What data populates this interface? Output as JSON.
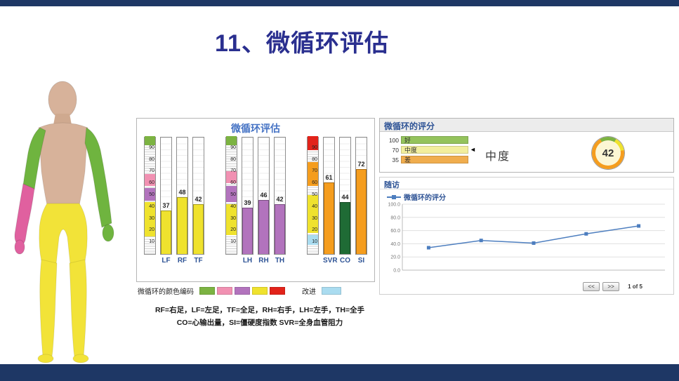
{
  "page": {
    "title": "11、微循环评估"
  },
  "colors": {
    "navy": "#1e3765",
    "title_blue": "#2a2f8f",
    "panel_title_blue": "#4472c4",
    "label_blue": "#2f5496",
    "green": "#7cb342",
    "pink": "#f191b2",
    "magenta": "#e0609f",
    "purple": "#b273bd",
    "yellow": "#efe22e",
    "red": "#e2231a",
    "orange": "#f59d1e",
    "dark_green": "#1f6b35",
    "light_blue": "#aadcf0",
    "line": "#4d7ebf",
    "band_good": "#94c35c",
    "band_mid": "#f2ee9d",
    "band_bad": "#f0ad4e",
    "skin": "#d7b29a",
    "body_yellow": "#f2e338"
  },
  "chart_data": [
    {
      "type": "bar",
      "title": "微循环评估",
      "ylim": [
        0,
        100
      ],
      "axis_ticks": [
        10,
        20,
        30,
        40,
        50,
        60,
        70,
        80,
        90
      ],
      "categories": [
        "LF",
        "RF",
        "TF",
        "LH",
        "RH",
        "TH",
        "SVR",
        "CO",
        "SI"
      ],
      "values": [
        37,
        48,
        42,
        39,
        46,
        42,
        61,
        44,
        72
      ],
      "groups": [
        {
          "axis_segments": [
            {
              "color": "green",
              "from": 92,
              "to": 100
            },
            {
              "color": "pink",
              "from": 58,
              "to": 68
            },
            {
              "color": "purple",
              "from": 45,
              "to": 56
            },
            {
              "color": "yellow",
              "from": 15,
              "to": 44
            }
          ],
          "bars": [
            {
              "label": "LF",
              "value": 37,
              "color": "yellow"
            },
            {
              "label": "RF",
              "value": 48,
              "color": "yellow"
            },
            {
              "label": "TF",
              "value": 42,
              "color": "yellow"
            }
          ]
        },
        {
          "axis_segments": [
            {
              "color": "green",
              "from": 92,
              "to": 100
            },
            {
              "color": "pink",
              "from": 60,
              "to": 70
            },
            {
              "color": "purple",
              "from": 44,
              "to": 58
            },
            {
              "color": "yellow",
              "from": 16,
              "to": 42
            }
          ],
          "bars": [
            {
              "label": "LH",
              "value": 39,
              "color": "purple"
            },
            {
              "label": "RH",
              "value": 46,
              "color": "purple"
            },
            {
              "label": "TH",
              "value": 42,
              "color": "purple"
            }
          ]
        },
        {
          "axis_segments": [
            {
              "color": "red",
              "from": 88,
              "to": 100
            },
            {
              "color": "orange",
              "from": 58,
              "to": 78
            },
            {
              "color": "yellow",
              "from": 18,
              "to": 50
            },
            {
              "color": "light_blue",
              "from": 8,
              "to": 16
            }
          ],
          "bars": [
            {
              "label": "SVR",
              "value": 61,
              "color": "orange"
            },
            {
              "label": "CO",
              "value": 44,
              "color": "dark_green"
            },
            {
              "label": "SI",
              "value": 72,
              "color": "orange"
            }
          ]
        }
      ]
    },
    {
      "type": "line",
      "title": "随访",
      "legend": "微循环的评分",
      "x": [
        1,
        2,
        3,
        4,
        5
      ],
      "values": [
        34,
        45,
        41,
        55,
        67
      ],
      "ylim": [
        0,
        100
      ],
      "yticks": [
        "0.0",
        "20.0",
        "40.0",
        "60.0",
        "80.0",
        "100.0"
      ],
      "marker": "square",
      "line_color": "#4d7ebf"
    }
  ],
  "score_panel": {
    "title": "微循环的评分",
    "bands": [
      {
        "value": "100",
        "label": "好",
        "color": "band_good"
      },
      {
        "value": "70",
        "label": "中度",
        "color": "band_mid",
        "pointer": true
      },
      {
        "value": "35",
        "label": "差",
        "color": "band_bad"
      }
    ],
    "rating": "中度",
    "score": "42"
  },
  "followup": {
    "title": "随访",
    "legend": "微循环的评分",
    "pager": {
      "prev": "<<",
      "next": ">>",
      "page": "1 of 5"
    }
  },
  "color_legend": {
    "label": "微循环的颜色编码",
    "swatches": [
      "green",
      "pink",
      "purple",
      "yellow",
      "red"
    ],
    "improve_label": "改进",
    "improve_color": "light_blue"
  },
  "footnotes": [
    "RF=右足，LF=左足，TF=全足，RH=右手，LH=左手，TH=全手",
    "CO=心输出量，SI=僵硬度指数  SVR=全身血管阻力"
  ]
}
